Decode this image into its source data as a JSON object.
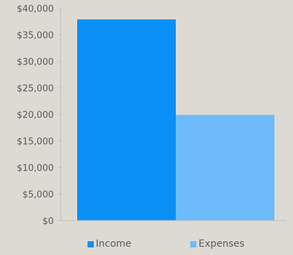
{
  "chart_data": {
    "type": "bar",
    "categories": [
      "Income",
      "Expenses"
    ],
    "values": [
      37900,
      19900
    ],
    "colors": [
      "#0a90f5",
      "#6dbbfb"
    ],
    "ylim": [
      0,
      40000
    ],
    "yticks": [
      0,
      5000,
      10000,
      15000,
      20000,
      25000,
      30000,
      35000,
      40000
    ],
    "ytick_labels": [
      "$0",
      "$5,000",
      "$10,000",
      "$15,000",
      "$20,000",
      "$25,000",
      "$30,000",
      "$35,000",
      "$40,000"
    ],
    "grid": false,
    "legend_position": "bottom",
    "legend": [
      {
        "label": "Income",
        "color": "#0a90f5"
      },
      {
        "label": "Expenses",
        "color": "#6dbbfb"
      }
    ],
    "title": "",
    "xlabel": "",
    "ylabel": ""
  },
  "colors": {
    "background": "#dddad3",
    "axis": "#bfbfbf",
    "text": "#595959"
  }
}
